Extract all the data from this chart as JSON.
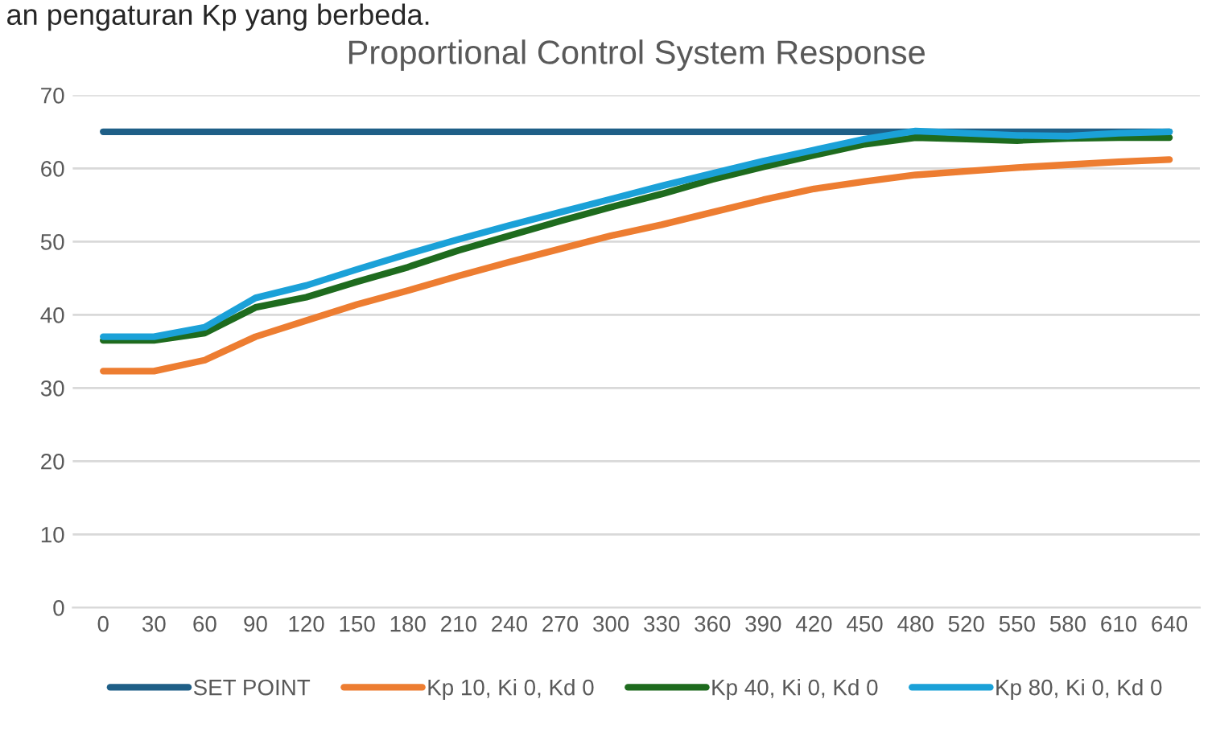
{
  "chart_data": {
    "type": "line",
    "title": "Proportional Control System Response",
    "annotations": [
      "an pengaturan Kp yang berbeda."
    ],
    "categories": [
      "0",
      "30",
      "60",
      "90",
      "120",
      "150",
      "180",
      "210",
      "240",
      "270",
      "300",
      "330",
      "360",
      "390",
      "420",
      "450",
      "480",
      "520",
      "550",
      "580",
      "610",
      "640"
    ],
    "series": [
      {
        "name": "SET POINT",
        "color": "#1f5f87",
        "values": [
          65,
          65,
          65,
          65,
          65,
          65,
          65,
          65,
          65,
          65,
          65,
          65,
          65,
          65,
          65,
          65,
          65,
          65,
          65,
          65,
          65,
          65
        ]
      },
      {
        "name": "Kp 10, Ki 0, Kd 0",
        "color": "#ed7d31",
        "values": [
          32.3,
          32.3,
          33.8,
          37,
          39.2,
          41.4,
          43.3,
          45.3,
          47.2,
          49,
          50.8,
          52.3,
          54,
          55.7,
          57.2,
          58.2,
          59.1,
          59.6,
          60.1,
          60.5,
          60.9,
          61.2
        ]
      },
      {
        "name": "Kp 40, Ki 0, Kd 0",
        "color": "#1e6b1e",
        "values": [
          36.5,
          36.5,
          37.5,
          41,
          42.4,
          44.5,
          46.5,
          48.8,
          50.8,
          52.8,
          54.7,
          56.5,
          58.5,
          60.2,
          61.8,
          63.3,
          64.2,
          64,
          63.8,
          64.1,
          64.2,
          64.2
        ]
      },
      {
        "name": "Kp 80, Ki 0, Kd 0",
        "color": "#1ba1d8",
        "values": [
          37,
          37,
          38.3,
          42.3,
          44,
          46.2,
          48.3,
          50.3,
          52.2,
          54,
          55.8,
          57.6,
          59.3,
          61,
          62.5,
          64,
          65.1,
          64.8,
          64.5,
          64.4,
          64.8,
          65
        ]
      }
    ],
    "ylim": [
      0,
      70
    ],
    "yticks": [
      0,
      10,
      20,
      30,
      40,
      50,
      60,
      70
    ],
    "grid": "y",
    "legend": "bottom",
    "marker": "none",
    "line_style": "solid"
  }
}
